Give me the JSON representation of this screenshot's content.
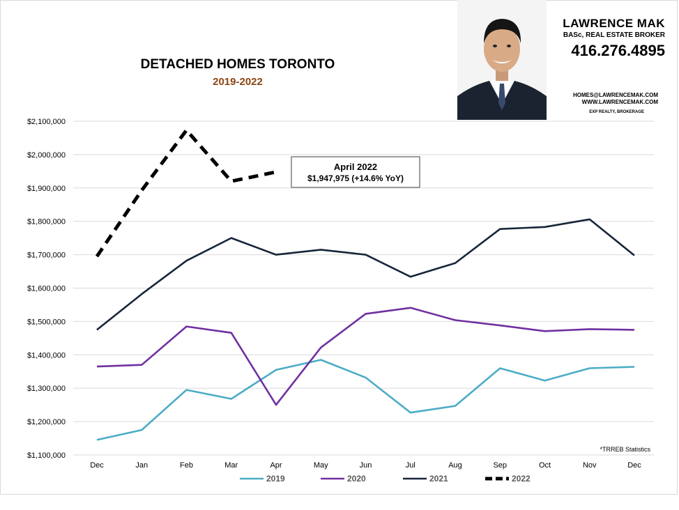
{
  "header": {
    "title": "DETACHED HOMES TORONTO",
    "subtitle": "2019-2022"
  },
  "agent": {
    "name": "LAWRENCE MAK",
    "title": "BASc, REAL ESTATE BROKER",
    "phone": "416.276.4895",
    "email": "HOMES@LAWRENCEMAK.COM",
    "website": "WWW.LAWRENCEMAK.COM",
    "brokerage": "EXP REALTY, BROKERAGE"
  },
  "callout": {
    "line1": "April 2022",
    "line2": "$1,947,975 (+14.6%  YoY)"
  },
  "source_note": "*TRREB Statistics",
  "colors": {
    "2019": "#4bacc6",
    "2020": "#7030a0",
    "2021": "#17253a",
    "2022": "#000000",
    "subtitle": "#8b4513",
    "grid": "#d9d9d9"
  },
  "chart_data": {
    "type": "line",
    "title": "DETACHED HOMES TORONTO",
    "subtitle": "2019-2022",
    "categories": [
      "Dec",
      "Jan",
      "Feb",
      "Mar",
      "Apr",
      "May",
      "Jun",
      "Jul",
      "Aug",
      "Sep",
      "Oct",
      "Nov",
      "Dec"
    ],
    "ylim": [
      1100000,
      2100000
    ],
    "yticks": [
      1100000,
      1200000,
      1300000,
      1400000,
      1500000,
      1600000,
      1700000,
      1800000,
      1900000,
      2000000,
      2100000
    ],
    "ytick_labels": [
      "$1,100,000",
      "$1,200,000",
      "$1,300,000",
      "$1,400,000",
      "$1,500,000",
      "$1,600,000",
      "$1,700,000",
      "$1,800,000",
      "$1,900,000",
      "$2,000,000",
      "$2,100,000"
    ],
    "grid": true,
    "legend": "bottom",
    "series": [
      {
        "name": "2019",
        "style": "solid",
        "values": [
          1145000,
          1175000,
          1295000,
          1268000,
          1355000,
          1385000,
          1332000,
          1227000,
          1247000,
          1360000,
          1323000,
          1360000,
          1364000
        ]
      },
      {
        "name": "2020",
        "style": "solid",
        "values": [
          1365000,
          1370000,
          1485000,
          1466000,
          1250000,
          1422000,
          1523000,
          1541000,
          1504000,
          1488000,
          1471000,
          1477000,
          1475000
        ]
      },
      {
        "name": "2021",
        "style": "solid",
        "values": [
          1475000,
          1582000,
          1682000,
          1750000,
          1700000,
          1715000,
          1700000,
          1634000,
          1675000,
          1777000,
          1783000,
          1806000,
          1698000
        ]
      },
      {
        "name": "2022",
        "style": "dashed",
        "values": [
          1695000,
          1893000,
          2073000,
          1920000,
          1947975,
          null,
          null,
          null,
          null,
          null,
          null,
          null,
          null
        ]
      }
    ]
  }
}
